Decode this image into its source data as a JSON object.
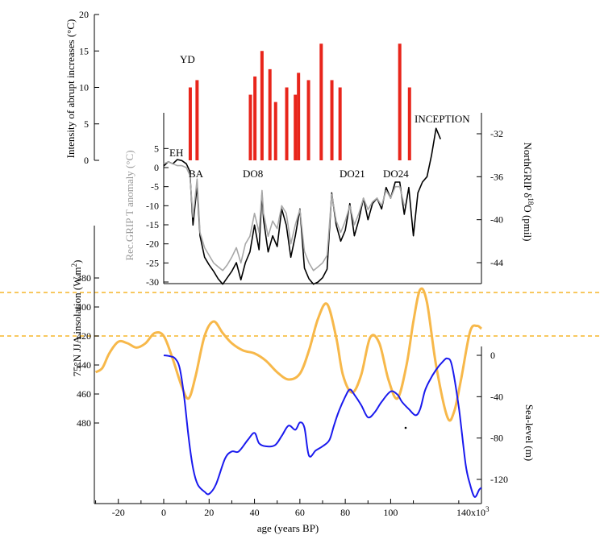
{
  "colors": {
    "abrupt": "#e8251b",
    "temperature": "#000000",
    "temperature_reconstruction": "#a8a8a8",
    "insolation": "#f7b84a",
    "insolation_reference": "#f5b52a",
    "sea_level": "#1a1aee",
    "axes": "#000000"
  },
  "labels": {
    "abrupt_ylabel": "Intensity of abrupt increases (°C)",
    "recgrip_ylabel": "Rec.GRIP T anomaly (°C)",
    "ngrip_ylabel": "NorthGRIP δ¹⁸O (pmil)",
    "ngrip_ylabel_main": "NorthGRIP δ",
    "ngrip_ylabel_sup": "18",
    "ngrip_ylabel_end": "O (pmil)",
    "insolation_ylabel": "75°N JJA insolation (W.m²)",
    "insolation_ylabel_main": "75°N JJA insolation (W.m",
    "insolation_ylabel_sup": "2",
    "insolation_ylabel_end": ")",
    "sealevel_ylabel": "Sea-level (m)",
    "xlabel": "age (years BP)",
    "x_multiplier_main": "140x10",
    "x_multiplier_sup": "3",
    "annotations": [
      "YD",
      "EH",
      "BA",
      "DO8",
      "DO21",
      "DO24",
      "INCEPTION"
    ]
  },
  "chart_data": [
    {
      "type": "bar",
      "name": "abrupt warmings",
      "ylabel": "Intensity of abrupt increases (°C)",
      "ylim": [
        0,
        20
      ],
      "yticks": [
        0,
        5,
        10,
        15,
        20
      ],
      "x": [
        11.7,
        14.7,
        38.2,
        40.2,
        43.3,
        46.8,
        49.3,
        54.2,
        58.0,
        59.4,
        63.8,
        69.4,
        74.1,
        77.7,
        104.0,
        108.3
      ],
      "values": [
        10,
        11,
        9,
        11.5,
        15,
        12.5,
        8,
        10,
        9,
        12,
        11,
        16,
        11,
        10,
        16,
        10
      ]
    },
    {
      "type": "line",
      "name": "NorthGRIP δ18O",
      "ylabel": "NorthGRIP δ18O (pmil)",
      "ylim": [
        -47,
        -30
      ],
      "yticks": [
        -32,
        -36,
        -40,
        -44
      ],
      "x": [
        0,
        2,
        4,
        6,
        8,
        10,
        11.5,
        12.9,
        14.7,
        16,
        18,
        20,
        22,
        24,
        26,
        28,
        30,
        32,
        34,
        36,
        38,
        40,
        42,
        43.3,
        44,
        46,
        48,
        50,
        52,
        54,
        56,
        58,
        60,
        62,
        64,
        66,
        68,
        70,
        72,
        74,
        76,
        78,
        80,
        82,
        84,
        86,
        88,
        90,
        92,
        94,
        96,
        98,
        100,
        102,
        104,
        106,
        108,
        110,
        112,
        114,
        116,
        118,
        120,
        122
      ],
      "values": [
        -35.0,
        -34.6,
        -34.8,
        -34.4,
        -34.5,
        -34.8,
        -35.5,
        -40.5,
        -36.8,
        -41.5,
        -43.5,
        -44.2,
        -44.8,
        -45.5,
        -46.0,
        -45.4,
        -44.8,
        -44.0,
        -45.6,
        -44.0,
        -43.0,
        -40.5,
        -42.8,
        -37.5,
        -40.0,
        -43.0,
        -41.5,
        -42.5,
        -39.0,
        -40.5,
        -43.5,
        -41.5,
        -39.0,
        -44.5,
        -45.5,
        -46.0,
        -45.8,
        -45.4,
        -44.6,
        -37.5,
        -40.5,
        -42.0,
        -41.0,
        -38.5,
        -41.5,
        -40.0,
        -38.0,
        -40.0,
        -38.5,
        -38.0,
        -39.0,
        -37.0,
        -38.0,
        -36.5,
        -36.5,
        -39.5,
        -37.0,
        -41.5,
        -37.5,
        -36.5,
        -36.0,
        -34.0,
        -31.5,
        -32.5
      ]
    },
    {
      "type": "line",
      "name": "Rec.GRIP T anomaly",
      "ylabel": "Rec.GRIP T anomaly (°C)",
      "ylim": [
        -30,
        7
      ],
      "yticks": [
        5,
        0,
        -5,
        -10,
        -15,
        -20,
        -25,
        -30
      ],
      "x": [
        0,
        2,
        4,
        6,
        8,
        10,
        11.5,
        12.9,
        14.7,
        16,
        18,
        20,
        22,
        24,
        26,
        28,
        30,
        32,
        34,
        36,
        38,
        40,
        42,
        43.3,
        44,
        46,
        48,
        50,
        52,
        54,
        56,
        58,
        60,
        62,
        64,
        66,
        68,
        70,
        72,
        74,
        76,
        78,
        80,
        82,
        84,
        86,
        88,
        90,
        92,
        94,
        96,
        98,
        100,
        102,
        104,
        106
      ],
      "values": [
        1.0,
        1.5,
        1.0,
        0.5,
        0.5,
        0.0,
        -2.0,
        -13.0,
        -3.0,
        -17.0,
        -21.0,
        -23.0,
        -25.0,
        -26.0,
        -27.0,
        -25.5,
        -23.5,
        -21.0,
        -25.0,
        -20.0,
        -18.0,
        -12.0,
        -17.0,
        -6.0,
        -12.0,
        -18.0,
        -14.0,
        -16.0,
        -10.0,
        -12.0,
        -20.0,
        -15.0,
        -11.0,
        -22.0,
        -25.0,
        -27.0,
        -26.0,
        -25.0,
        -23.0,
        -7.0,
        -14.0,
        -17.0,
        -14.0,
        -10.0,
        -15.0,
        -12.0,
        -8.0,
        -11.0,
        -9.0,
        -8.0,
        -10.0,
        -6.0,
        -8.0,
        -5.0,
        -5.0,
        -10.0
      ]
    },
    {
      "type": "line",
      "name": "75°N JJA insolation",
      "ylabel": "75°N JJA insolation (W.m2)",
      "ylim": [
        373,
        490
      ],
      "yticks": [
        380,
        400,
        420,
        440,
        460,
        480
      ],
      "reference_lines": [
        420,
        390
      ],
      "x": [
        -30,
        -27,
        -24,
        -20,
        -16,
        -12,
        -8,
        -4,
        0,
        4,
        8,
        11,
        14,
        18,
        22,
        26,
        30,
        35,
        40,
        45,
        50,
        55,
        60,
        64,
        68,
        72,
        76,
        79,
        83,
        87,
        91,
        95,
        99,
        103,
        107,
        110,
        113,
        116,
        120,
        125,
        128,
        131,
        135,
        138,
        140
      ],
      "values": [
        445,
        442,
        432,
        424,
        425,
        428,
        425,
        418,
        420,
        436,
        455,
        463,
        448,
        420,
        410,
        418,
        425,
        430,
        432,
        437,
        445,
        450,
        446,
        430,
        408,
        398,
        421,
        447,
        459,
        447,
        421,
        425,
        450,
        463,
        440,
        410,
        388,
        397,
        440,
        476,
        472,
        450,
        417,
        413,
        415
      ]
    },
    {
      "type": "line",
      "name": "Sea-level",
      "ylabel": "Sea-level (m)",
      "ylim": [
        -136,
        5
      ],
      "yticks": [
        0,
        -40,
        -80,
        -120
      ],
      "x": [
        0,
        3,
        5,
        7,
        9,
        11,
        13,
        15,
        18,
        20,
        23,
        27,
        30,
        33,
        37,
        40,
        42,
        45,
        49,
        52,
        55,
        58,
        60,
        62,
        64,
        67,
        70,
        73,
        75,
        77,
        80,
        82,
        84,
        87,
        90,
        93,
        96,
        100,
        103,
        105,
        108,
        111,
        113,
        115,
        117,
        120,
        123,
        125,
        127,
        130,
        133,
        135,
        137,
        139,
        140
      ],
      "values": [
        0,
        -1,
        -3,
        -12,
        -40,
        -80,
        -110,
        -125,
        -132,
        -134,
        -125,
        -100,
        -93,
        -93,
        -82,
        -75,
        -85,
        -88,
        -87,
        -78,
        -68,
        -72,
        -65,
        -70,
        -97,
        -92,
        -88,
        -82,
        -68,
        -55,
        -40,
        -33,
        -38,
        -48,
        -60,
        -55,
        -45,
        -35,
        -38,
        -45,
        -52,
        -58,
        -52,
        -35,
        -25,
        -14,
        -6,
        -3,
        -10,
        -50,
        -105,
        -125,
        -137,
        -130,
        -128
      ]
    }
  ]
}
